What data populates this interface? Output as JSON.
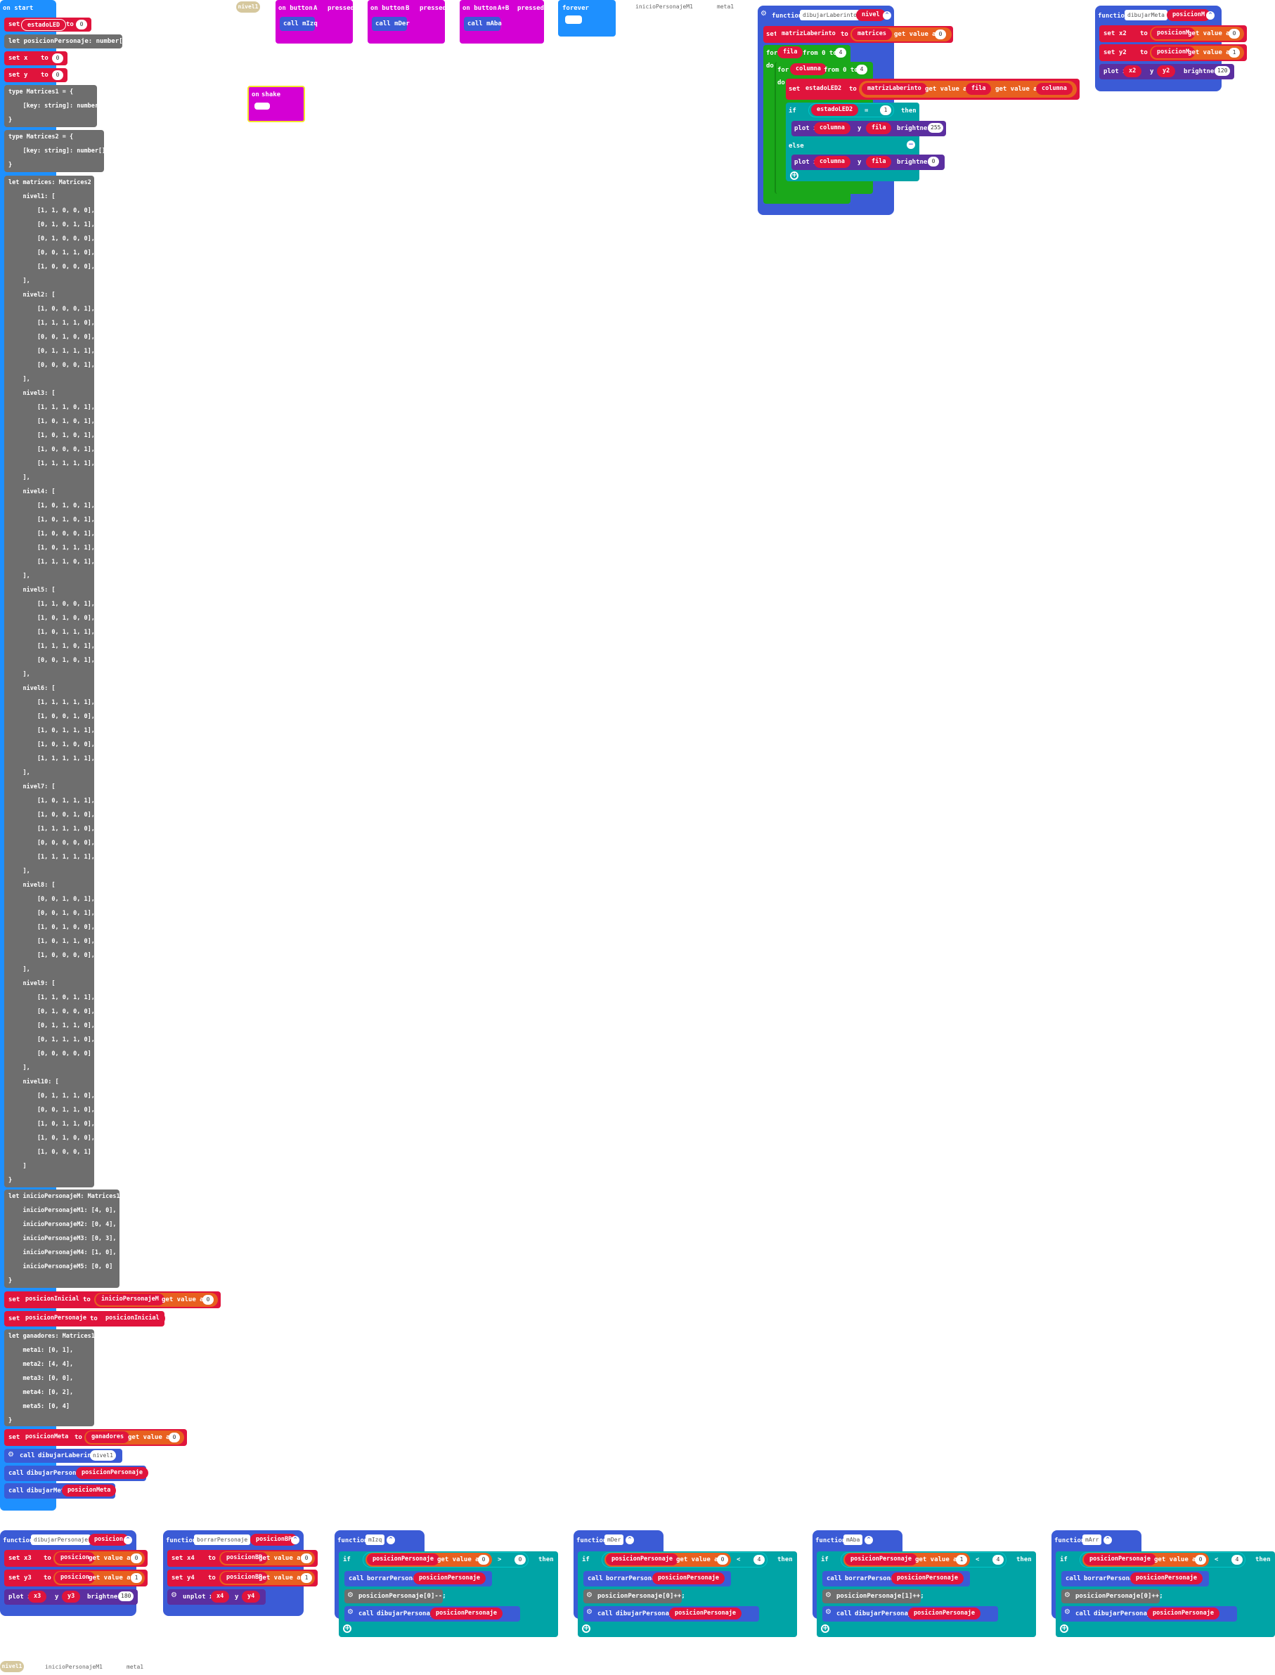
{
  "colors": {
    "blue": "#1e90ff",
    "red": "#e0143c",
    "gray": "#6e6e6e",
    "magenta": "#d400d4",
    "fn": "#3b5bd6",
    "teal": "#00a4a6",
    "green": "#1aa81a",
    "orange": "#e8601f",
    "purple": "#5b2fa0",
    "tan": "#d6c89e"
  },
  "on_start": {
    "title": "on start",
    "set_label": "set",
    "to_label": "to",
    "estado_var": "estadoLED",
    "estado_val": "0",
    "posicion_line": "let posicionPersonaje: number[] = []",
    "x_var": "x",
    "x_val": "0",
    "y_var": "y",
    "y_val": "0",
    "type1": "type Matrices1 = {\n    [key: string]: number[];\n}",
    "type2": "type Matrices2 = {\n    [key: string]: number[][];\n}",
    "matrices": "let matrices: Matrices2 = {\n    nivel1: [\n        [1, 1, 0, 0, 0],\n        [0, 1, 0, 1, 1],\n        [0, 1, 0, 0, 0],\n        [0, 0, 1, 1, 0],\n        [1, 0, 0, 0, 0],\n    ],\n    nivel2: [\n        [1, 0, 0, 0, 1],\n        [1, 1, 1, 1, 0],\n        [0, 0, 1, 0, 0],\n        [0, 1, 1, 1, 1],\n        [0, 0, 0, 0, 1],\n    ],\n    nivel3: [\n        [1, 1, 1, 0, 1],\n        [1, 0, 1, 0, 1],\n        [1, 0, 1, 0, 1],\n        [1, 0, 0, 0, 1],\n        [1, 1, 1, 1, 1],\n    ],\n    nivel4: [\n        [1, 0, 1, 0, 1],\n        [1, 0, 1, 0, 1],\n        [1, 0, 0, 0, 1],\n        [1, 0, 1, 1, 1],\n        [1, 1, 1, 0, 1],\n    ],\n    nivel5: [\n        [1, 1, 0, 0, 1],\n        [1, 0, 1, 0, 0],\n        [1, 0, 1, 1, 1],\n        [1, 1, 1, 0, 1],\n        [0, 0, 1, 0, 1],\n    ],\n    nivel6: [\n        [1, 1, 1, 1, 1],\n        [1, 0, 0, 1, 0],\n        [1, 0, 1, 1, 1],\n        [1, 0, 1, 0, 0],\n        [1, 1, 1, 1, 1],\n    ],\n    nivel7: [\n        [1, 0, 1, 1, 1],\n        [1, 0, 0, 1, 0],\n        [1, 1, 1, 1, 0],\n        [0, 0, 0, 0, 0],\n        [1, 1, 1, 1, 1],\n    ],\n    nivel8: [\n        [0, 0, 1, 0, 1],\n        [0, 0, 1, 0, 1],\n        [1, 0, 1, 0, 0],\n        [1, 0, 1, 1, 0],\n        [1, 0, 0, 0, 0],\n    ],\n    nivel9: [\n        [1, 1, 0, 1, 1],\n        [0, 1, 0, 0, 0],\n        [0, 1, 1, 1, 0],\n        [0, 1, 1, 1, 0],\n        [0, 0, 0, 0, 0]\n    ],\n    nivel10: [\n        [0, 1, 1, 1, 0],\n        [0, 0, 1, 1, 0],\n        [1, 0, 1, 1, 0],\n        [1, 0, 1, 0, 0],\n        [1, 0, 0, 0, 1]\n    ]\n}",
    "inicio_block": "let inicioPersonajeM: Matrices1 = {\n    inicioPersonajeM1: [4, 0],\n    inicioPersonajeM2: [0, 4],\n    inicioPersonajeM3: [0, 3],\n    inicioPersonajeM4: [1, 0],\n    inicioPersonajeM5: [0, 0]\n}",
    "posinicial_var": "posicionInicial",
    "inicioM_var": "inicioPersonajeM",
    "get_value_at": "get value at",
    "zero": "0",
    "pospers_var": "posicionPersonaje",
    "posinicial_ref": "posicionInicial",
    "ganadores": "let ganadores: Matrices1 = {\n    meta1: [0, 1],\n    meta2: [4, 4],\n    meta3: [0, 0],\n    meta4: [0, 2],\n    meta5: [0, 4]\n}",
    "posmeta_var": "posicionMeta",
    "ganadores_var": "ganadores",
    "call": "call",
    "call_dl": "dibujarLaberinto",
    "nivel1_arg": "nivel1",
    "call_dp": "dibujarPersonaje",
    "pospers_arg": "posicionPersonaje",
    "call_dm": "dibujarMeta",
    "posmeta_arg": "posicionMeta"
  },
  "tags": {
    "nivel1": "nivel1",
    "inicioPersonajeM1": "inicioPersonajeM1",
    "meta1": "meta1"
  },
  "buttons": {
    "on_button": "on button",
    "pressed": "pressed",
    "a": "A",
    "b": "B",
    "ab": "A+B",
    "call_mIzq": "call mIzq",
    "call_mDer": "call mDer",
    "call_mAba": "call mAba",
    "forever": "forever"
  },
  "shake": {
    "on": "on",
    "gesture": "shake"
  },
  "laberinto": {
    "function": "function",
    "name": "dibujarLaberinto",
    "param": "nivel",
    "set": "set",
    "matriz": "matrizLaberinto",
    "to": "to",
    "matrices": "matrices",
    "get_value_at": "get value at",
    "idx": "0",
    "for": "for",
    "fila": "fila",
    "from": "from 0 to",
    "four": "4",
    "do": "do",
    "columna": "columna",
    "estado": "estadoLED2",
    "matriz_ref": "matrizLaberinto",
    "fila_ref": "fila",
    "col_ref": "columna",
    "if": "if",
    "eq": "=",
    "one": "1",
    "then": "then",
    "plot": "plot x",
    "y": "y",
    "brightness": "brightness",
    "b255": "255",
    "else": "else",
    "b0": "0"
  },
  "meta_fn": {
    "function": "function",
    "name": "dibujarMeta",
    "param": "posicionM",
    "set": "set",
    "x2": "x2",
    "y2": "y2",
    "to": "to",
    "pm": "posicionM",
    "get_value_at": "get value at",
    "i0": "0",
    "i1": "1",
    "plot": "plot x",
    "y": "y",
    "brightness": "brightness",
    "b": "120"
  },
  "pers_fn": {
    "function": "function",
    "name": "dibujarPersonaje",
    "param": "posicion",
    "set": "set",
    "x3": "x3",
    "y3": "y3",
    "to": "to",
    "pos": "posicion",
    "get_value_at": "get value at",
    "i0": "0",
    "i1": "1",
    "plot": "plot x",
    "y": "y",
    "brightness": "brightness",
    "b": "180"
  },
  "borrar_fn": {
    "function": "function",
    "name": "borrarPersonaje",
    "param": "posicionBP",
    "set": "set",
    "x4": "x4",
    "y4": "y4",
    "to": "to",
    "pos": "posicionBP",
    "get_value_at": "get value at",
    "i0": "0",
    "i1": "1",
    "unplot": "unplot x",
    "y": "y"
  },
  "moves": [
    {
      "name": "mIzq",
      "idx": "0",
      "op": ">",
      "lim": "0",
      "stmt": "posicionPersonaje[0]--;"
    },
    {
      "name": "mDer",
      "idx": "0",
      "op": "<",
      "lim": "4",
      "stmt": "posicionPersonaje[0]++;"
    },
    {
      "name": "mAba",
      "idx": "1",
      "op": "<",
      "lim": "4",
      "stmt": "posicionPersonaje[1]++;"
    },
    {
      "name": "mArr",
      "idx": "0",
      "op": "<",
      "lim": "4",
      "stmt": "posicionPersonaje[0]++;"
    }
  ],
  "move_common": {
    "function": "function",
    "if": "if",
    "pp": "posicionPersonaje",
    "get_value_at": "get value at",
    "then": "then",
    "call": "call",
    "borrar": "borrarPersonaje",
    "dibujar": "dibujarPersonaje",
    "arg": "posicionPersonaje"
  }
}
